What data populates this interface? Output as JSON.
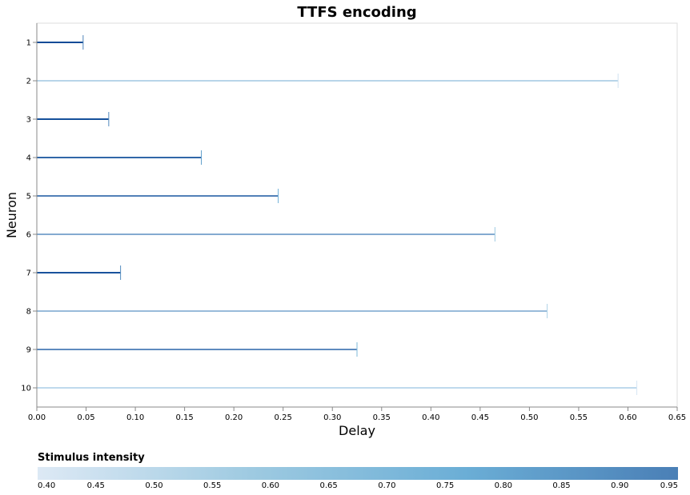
{
  "chart_data": {
    "type": "bar",
    "title": "TTFS encoding",
    "xlabel": "Delay",
    "ylabel": "Neuron",
    "xlim": [
      0,
      0.65
    ],
    "x_ticks": [
      "0.00",
      "0.05",
      "0.10",
      "0.15",
      "0.20",
      "0.25",
      "0.30",
      "0.35",
      "0.40",
      "0.45",
      "0.50",
      "0.55",
      "0.60",
      "0.65"
    ],
    "categories": [
      "1",
      "2",
      "3",
      "4",
      "5",
      "6",
      "7",
      "8",
      "9",
      "10"
    ],
    "values": [
      0.047,
      0.59,
      0.073,
      0.167,
      0.245,
      0.465,
      0.085,
      0.518,
      0.325,
      0.609
    ],
    "intensity": [
      0.93,
      0.44,
      0.91,
      0.83,
      0.74,
      0.59,
      0.9,
      0.53,
      0.7,
      0.42
    ],
    "legend": {
      "title": "Stimulus intensity",
      "ticks": [
        "0.40",
        "0.45",
        "0.50",
        "0.55",
        "0.60",
        "0.65",
        "0.70",
        "0.75",
        "0.80",
        "0.85",
        "0.90",
        "0.95"
      ],
      "range": [
        0.4,
        0.95
      ],
      "colors": [
        "#dde9f5",
        "#9ecae1",
        "#6baed6",
        "#4a7fb6"
      ]
    },
    "grid": false
  }
}
